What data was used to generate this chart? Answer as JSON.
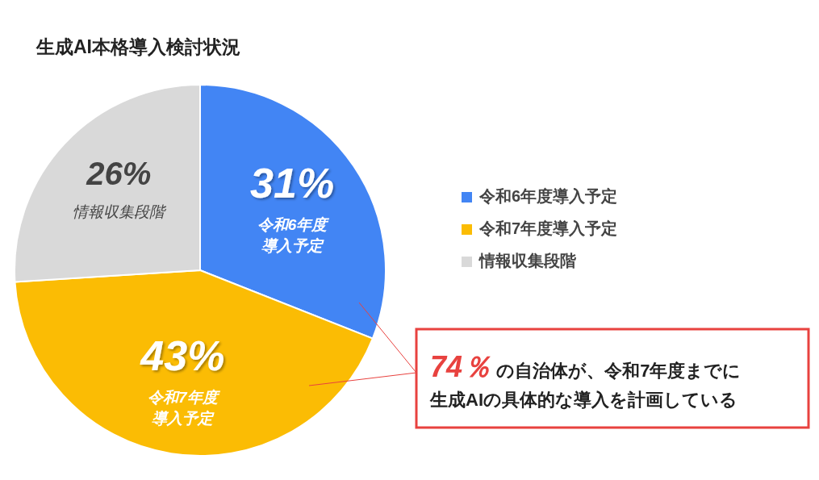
{
  "chart_data": {
    "type": "pie",
    "title": "生成AI本格導入検討状況",
    "categories": [
      "令和6年度導入予定",
      "令和7年度導入予定",
      "情報収集段階"
    ],
    "values": [
      31,
      43,
      26
    ],
    "colors": [
      "#4285f4",
      "#fbbc04",
      "#d9d9d9"
    ],
    "value_labels": [
      "31%",
      "43%",
      "26%"
    ],
    "legend": "right",
    "annotations": [
      {
        "text": "令和6年度導入予定",
        "x": "令和6年度導入予定"
      },
      {
        "text": "令和7年度導入予定",
        "x": "令和7年度導入予定"
      },
      {
        "text": "情報収集段階",
        "x": "情報収集段階"
      },
      "74％ の自治体が、令和7年度までに生成AIの具体的な導入を計画している"
    ]
  }
}
